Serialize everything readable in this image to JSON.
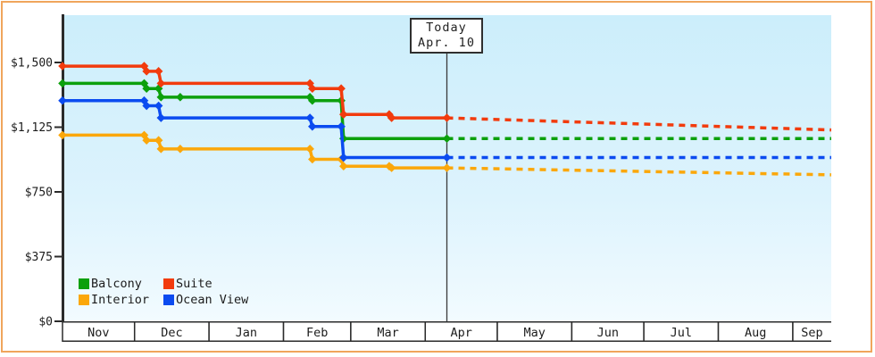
{
  "frame": {
    "border_color": "#f0a55c"
  },
  "today_marker": {
    "label": "Today",
    "date": "Apr. 10"
  },
  "legend": {
    "items": [
      {
        "label": "Balcony",
        "color": "#0ca00c"
      },
      {
        "label": "Suite",
        "color": "#f23b0d"
      },
      {
        "label": "Interior",
        "color": "#fba70a"
      },
      {
        "label": "Ocean View",
        "color": "#0b4bf0"
      }
    ]
  },
  "chart_data": {
    "type": "line",
    "title": "",
    "unit": "USD",
    "encoding": "series points are [day offset from Nov 1, price in USD]; dashed projection segments run from Today (day 160, Apr. 10) to the right edge (day 320)",
    "x_axis": {
      "total_days": 320,
      "months": [
        {
          "label": "Nov",
          "days": 30
        },
        {
          "label": "Dec",
          "days": 31
        },
        {
          "label": "Jan",
          "days": 31
        },
        {
          "label": "Feb",
          "days": 28
        },
        {
          "label": "Mar",
          "days": 31
        },
        {
          "label": "Apr",
          "days": 30
        },
        {
          "label": "May",
          "days": 31
        },
        {
          "label": "Jun",
          "days": 30
        },
        {
          "label": "Jul",
          "days": 31
        },
        {
          "label": "Aug",
          "days": 31
        },
        {
          "label": "Sep",
          "days": 16
        }
      ]
    },
    "y_axis": {
      "min": 0,
      "max": 1500,
      "ticks": [
        {
          "label": "$1,500",
          "value": 1500
        },
        {
          "label": "$1,125",
          "value": 1125
        },
        {
          "label": "$750",
          "value": 750
        },
        {
          "label": "$375",
          "value": 375
        },
        {
          "label": "$0",
          "value": 0
        }
      ]
    },
    "today": {
      "label": "Today",
      "date": "Apr. 10",
      "day_offset": 160
    },
    "legend_position": "bottom-left inside plot",
    "grid": false,
    "series": [
      {
        "name": "Balcony",
        "color": "#0ca00c",
        "points": [
          [
            0,
            1379
          ],
          [
            34,
            1379
          ],
          [
            35,
            1349
          ],
          [
            40,
            1349
          ],
          [
            41,
            1299
          ],
          [
            49,
            1299
          ],
          [
            103,
            1299
          ],
          [
            104,
            1279
          ],
          [
            116,
            1279
          ],
          [
            117,
            1059
          ],
          [
            160,
            1059
          ]
        ],
        "projection": [
          [
            160,
            1059
          ],
          [
            320,
            1059
          ]
        ]
      },
      {
        "name": "Suite",
        "color": "#f23b0d",
        "points": [
          [
            0,
            1479
          ],
          [
            34,
            1479
          ],
          [
            35,
            1449
          ],
          [
            40,
            1449
          ],
          [
            41,
            1379
          ],
          [
            103,
            1379
          ],
          [
            104,
            1349
          ],
          [
            116,
            1349
          ],
          [
            117,
            1199
          ],
          [
            136,
            1199
          ],
          [
            137,
            1179
          ],
          [
            160,
            1179
          ]
        ],
        "projection": [
          [
            160,
            1179
          ],
          [
            320,
            1109
          ]
        ]
      },
      {
        "name": "Interior",
        "color": "#fba70a",
        "points": [
          [
            0,
            1079
          ],
          [
            34,
            1079
          ],
          [
            35,
            1049
          ],
          [
            40,
            1049
          ],
          [
            41,
            999
          ],
          [
            49,
            999
          ],
          [
            103,
            999
          ],
          [
            104,
            939
          ],
          [
            116,
            939
          ],
          [
            117,
            899
          ],
          [
            136,
            899
          ],
          [
            137,
            889
          ],
          [
            160,
            889
          ]
        ],
        "projection": [
          [
            160,
            889
          ],
          [
            320,
            849
          ]
        ]
      },
      {
        "name": "Ocean View",
        "color": "#0b4bf0",
        "points": [
          [
            0,
            1279
          ],
          [
            34,
            1279
          ],
          [
            35,
            1249
          ],
          [
            40,
            1249
          ],
          [
            41,
            1179
          ],
          [
            103,
            1179
          ],
          [
            104,
            1129
          ],
          [
            116,
            1129
          ],
          [
            117,
            949
          ],
          [
            160,
            949
          ]
        ],
        "projection": [
          [
            160,
            949
          ],
          [
            320,
            949
          ]
        ]
      }
    ]
  }
}
